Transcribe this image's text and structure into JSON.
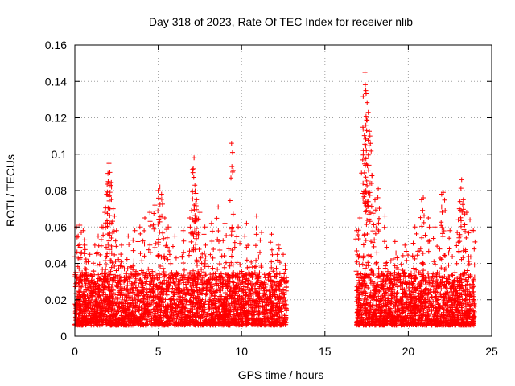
{
  "chart_data": {
    "type": "scatter",
    "title": "Day 318 of 2023, Rate Of TEC Index for receiver nlib",
    "xlabel": "GPS time / hours",
    "ylabel": "ROTI / TECUs",
    "xlim": [
      0,
      25
    ],
    "ylim": [
      0,
      0.16
    ],
    "xticks": [
      0,
      5,
      10,
      15,
      20,
      25
    ],
    "xtick_labels": [
      "0",
      "5",
      "10",
      "15",
      "20",
      "25"
    ],
    "yticks": [
      0,
      0.02,
      0.04,
      0.06,
      0.08,
      0.1,
      0.12,
      0.14,
      0.16
    ],
    "ytick_labels": [
      "0",
      "0.02",
      "0.04",
      "0.06",
      "0.08",
      "0.1",
      "0.12",
      "0.14",
      "0.16"
    ],
    "grid": true,
    "marker": "+",
    "color": "#ff0000",
    "series": [
      {
        "name": "ROTI",
        "points": [
          [
            0.1,
            0.06
          ],
          [
            0.2,
            0.055
          ],
          [
            0.3,
            0.061
          ],
          [
            0.5,
            0.058
          ],
          [
            0.6,
            0.05
          ],
          [
            0.9,
            0.045
          ],
          [
            1.2,
            0.05
          ],
          [
            1.4,
            0.055
          ],
          [
            1.6,
            0.06
          ],
          [
            1.8,
            0.068
          ],
          [
            1.9,
            0.078
          ],
          [
            2.0,
            0.085
          ],
          [
            2.05,
            0.095
          ],
          [
            2.1,
            0.09
          ],
          [
            2.2,
            0.082
          ],
          [
            2.3,
            0.07
          ],
          [
            2.5,
            0.058
          ],
          [
            2.8,
            0.05
          ],
          [
            3.2,
            0.055
          ],
          [
            3.6,
            0.058
          ],
          [
            3.9,
            0.06
          ],
          [
            4.2,
            0.065
          ],
          [
            4.5,
            0.068
          ],
          [
            4.8,
            0.072
          ],
          [
            5.0,
            0.08
          ],
          [
            5.1,
            0.082
          ],
          [
            5.2,
            0.078
          ],
          [
            5.4,
            0.065
          ],
          [
            5.6,
            0.06
          ],
          [
            6.0,
            0.055
          ],
          [
            6.5,
            0.058
          ],
          [
            6.9,
            0.065
          ],
          [
            7.0,
            0.069
          ],
          [
            7.1,
            0.092
          ],
          [
            7.15,
            0.098
          ],
          [
            7.2,
            0.083
          ],
          [
            7.3,
            0.075
          ],
          [
            7.5,
            0.068
          ],
          [
            7.8,
            0.06
          ],
          [
            8.2,
            0.062
          ],
          [
            8.6,
            0.071
          ],
          [
            9.0,
            0.062
          ],
          [
            9.4,
            0.106
          ],
          [
            9.5,
            0.067
          ],
          [
            9.8,
            0.06
          ],
          [
            10.3,
            0.062
          ],
          [
            10.9,
            0.066
          ],
          [
            11.2,
            0.057
          ],
          [
            11.8,
            0.056
          ],
          [
            12.2,
            0.05
          ],
          [
            12.5,
            0.045
          ],
          [
            16.9,
            0.058
          ],
          [
            17.1,
            0.065
          ],
          [
            17.3,
            0.102
          ],
          [
            17.4,
            0.145
          ],
          [
            17.45,
            0.135
          ],
          [
            17.5,
            0.113
          ],
          [
            17.6,
            0.123
          ],
          [
            17.7,
            0.11
          ],
          [
            17.8,
            0.084
          ],
          [
            18.0,
            0.075
          ],
          [
            18.2,
            0.081
          ],
          [
            18.6,
            0.066
          ],
          [
            19.2,
            0.052
          ],
          [
            19.8,
            0.05
          ],
          [
            20.4,
            0.06
          ],
          [
            20.8,
            0.075
          ],
          [
            20.9,
            0.076
          ],
          [
            21.2,
            0.065
          ],
          [
            21.6,
            0.06
          ],
          [
            22.0,
            0.078
          ],
          [
            22.1,
            0.079
          ],
          [
            22.5,
            0.058
          ],
          [
            23.0,
            0.064
          ],
          [
            23.1,
            0.074
          ],
          [
            23.2,
            0.086
          ],
          [
            23.3,
            0.075
          ],
          [
            23.5,
            0.068
          ],
          [
            23.7,
            0.064
          ],
          [
            23.9,
            0.058
          ]
        ],
        "dense_segments": [
          {
            "x_start": 0.0,
            "x_end": 12.7,
            "y_low": 0.006,
            "y_high": 0.035
          },
          {
            "x_start": 16.9,
            "x_end": 24.0,
            "y_low": 0.006,
            "y_high": 0.035
          }
        ]
      }
    ]
  }
}
